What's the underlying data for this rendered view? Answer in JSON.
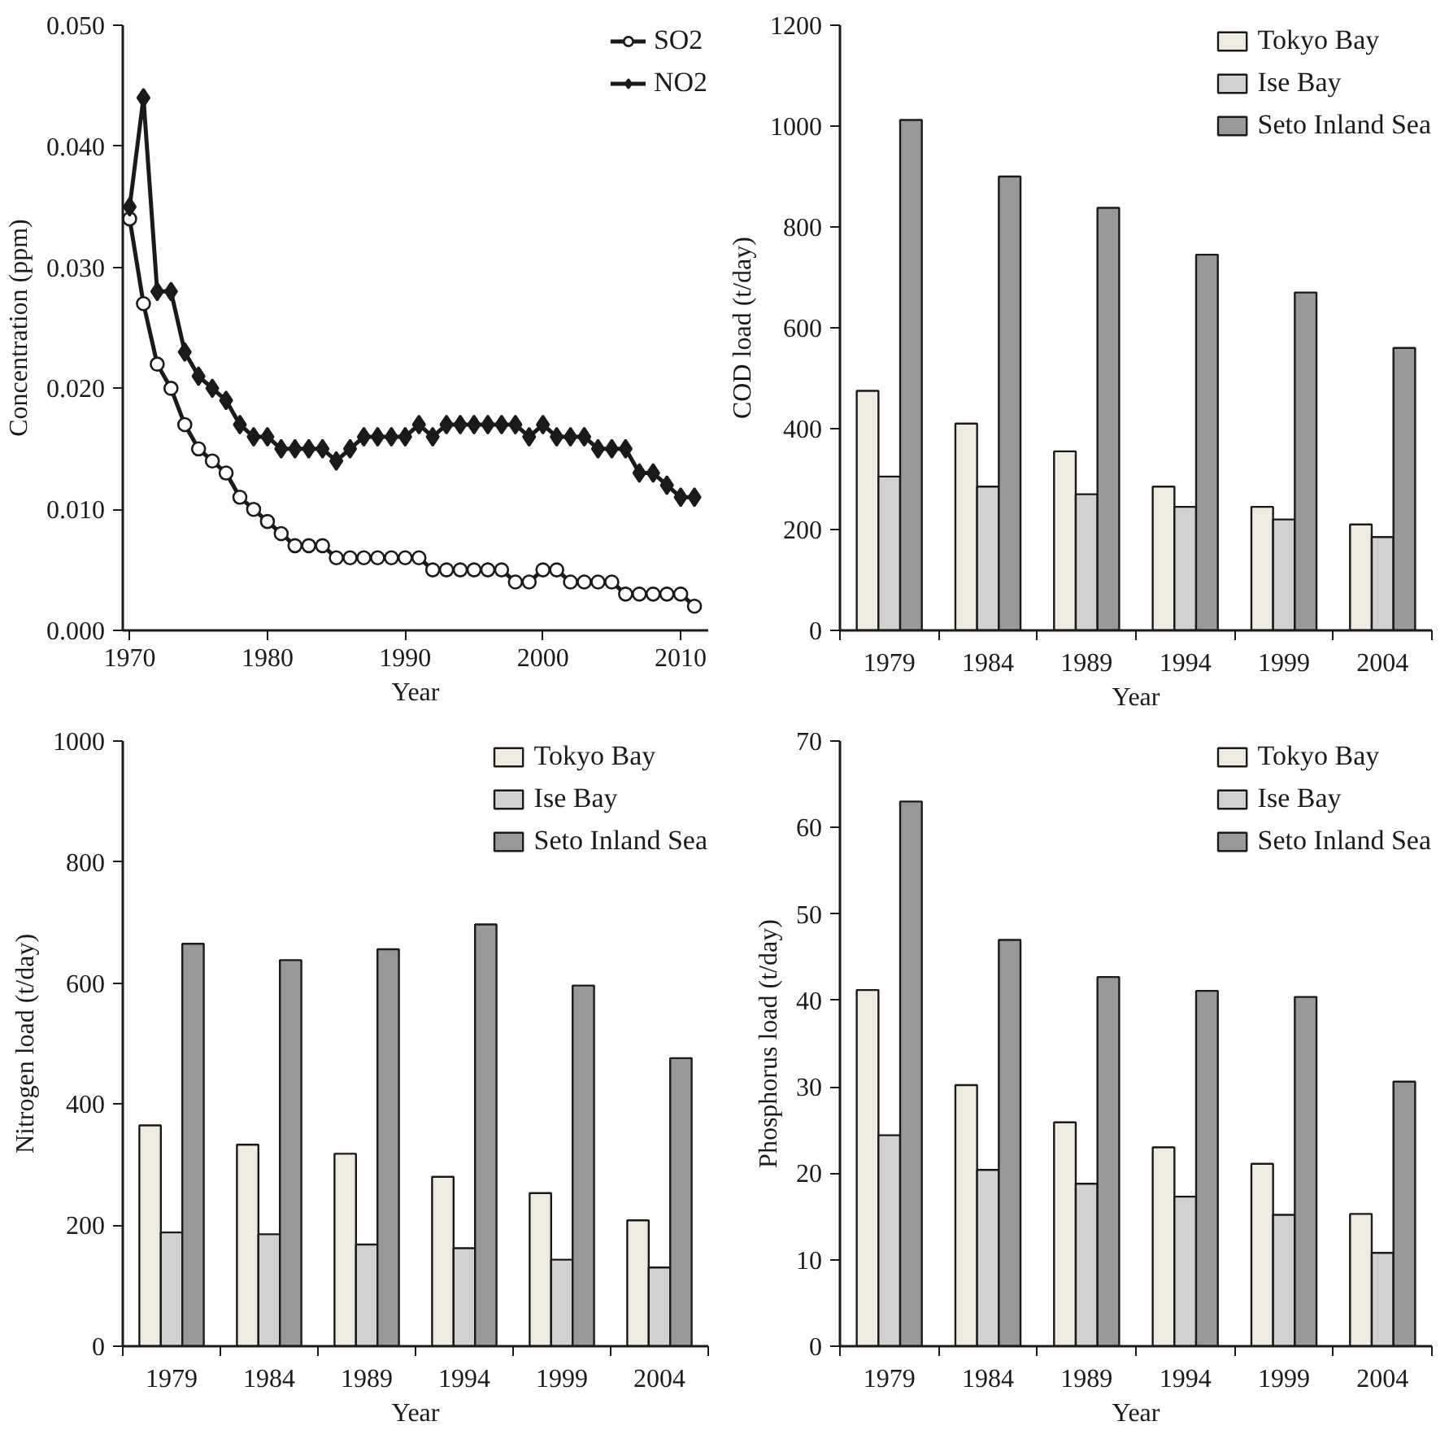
{
  "chart_data": [
    {
      "type": "line",
      "xlabel": "Year",
      "ylabel": "Concentration (ppm)",
      "x": [
        1970,
        1971,
        1972,
        1973,
        1974,
        1975,
        1976,
        1977,
        1978,
        1979,
        1980,
        1981,
        1982,
        1983,
        1984,
        1985,
        1986,
        1987,
        1988,
        1989,
        1990,
        1991,
        1992,
        1993,
        1994,
        1995,
        1996,
        1997,
        1998,
        1999,
        2000,
        2001,
        2002,
        2003,
        2004,
        2005,
        2006,
        2007,
        2008,
        2009,
        2010,
        2011
      ],
      "xlim": [
        1969.5,
        2012
      ],
      "xticks": [
        1970,
        1980,
        1990,
        2000,
        2010
      ],
      "ylim": [
        0,
        0.05
      ],
      "yticks": [
        {
          "value": 0,
          "label": "0.000"
        },
        {
          "value": 0.01,
          "label": "0.010"
        },
        {
          "value": 0.02,
          "label": "0.020"
        },
        {
          "value": 0.03,
          "label": "0.030"
        },
        {
          "value": 0.04,
          "label": "0.040"
        },
        {
          "value": 0.05,
          "label": "0.050"
        }
      ],
      "grid": false,
      "legend": "top right",
      "line_style": "solid",
      "series": [
        {
          "name": "SO2",
          "color": "#1a1a1a",
          "marker": "circle",
          "values": [
            0.034,
            0.027,
            0.022,
            0.02,
            0.017,
            0.015,
            0.014,
            0.013,
            0.011,
            0.01,
            0.009,
            0.008,
            0.007,
            0.007,
            0.007,
            0.006,
            0.006,
            0.006,
            0.006,
            0.006,
            0.006,
            0.006,
            0.005,
            0.005,
            0.005,
            0.005,
            0.005,
            0.005,
            0.004,
            0.004,
            0.005,
            0.005,
            0.004,
            0.004,
            0.004,
            0.004,
            0.003,
            0.003,
            0.003,
            0.003,
            0.003,
            0.002
          ]
        },
        {
          "name": "NO2",
          "color": "#1a1a1a",
          "marker": "diamond",
          "values": [
            0.035,
            0.044,
            0.028,
            0.028,
            0.023,
            0.021,
            0.02,
            0.019,
            0.017,
            0.016,
            0.016,
            0.015,
            0.015,
            0.015,
            0.015,
            0.014,
            0.015,
            0.016,
            0.016,
            0.016,
            0.016,
            0.017,
            0.016,
            0.017,
            0.017,
            0.017,
            0.017,
            0.017,
            0.017,
            0.016,
            0.017,
            0.016,
            0.016,
            0.016,
            0.015,
            0.015,
            0.015,
            0.013,
            0.013,
            0.012,
            0.011,
            0.011
          ]
        }
      ]
    },
    {
      "type": "bar",
      "xlabel": "Year",
      "ylabel": "COD load (t/day)",
      "categories": [
        "1979",
        "1984",
        "1989",
        "1994",
        "1999",
        "2004"
      ],
      "ylim": [
        0,
        1200
      ],
      "yticks": [
        0,
        200,
        400,
        600,
        800,
        1000,
        1200
      ],
      "grid": false,
      "legend": "top right",
      "series": [
        {
          "name": "Tokyo Bay",
          "color": "#eeece0",
          "values": [
            475,
            410,
            355,
            285,
            245,
            210
          ]
        },
        {
          "name": "Ise Bay",
          "color": "#d0d2d2",
          "values": [
            305,
            285,
            270,
            245,
            220,
            185
          ]
        },
        {
          "name": "Seto Inland Sea",
          "color": "#999999",
          "values": [
            1012,
            900,
            838,
            745,
            670,
            560
          ]
        }
      ]
    },
    {
      "type": "bar",
      "xlabel": "Year",
      "ylabel": "Nitrogen load (t/day)",
      "categories": [
        "1979",
        "1984",
        "1989",
        "1994",
        "1999",
        "2004"
      ],
      "ylim": [
        0,
        1000
      ],
      "yticks": [
        0,
        200,
        400,
        600,
        800,
        1000
      ],
      "grid": false,
      "legend": "top right",
      "series": [
        {
          "name": "Tokyo Bay",
          "color": "#eeece0",
          "values": [
            365,
            333,
            318,
            280,
            253,
            208
          ]
        },
        {
          "name": "Ise Bay",
          "color": "#d0d2d2",
          "values": [
            188,
            185,
            168,
            162,
            143,
            130
          ]
        },
        {
          "name": "Seto Inland Sea",
          "color": "#999999",
          "values": [
            665,
            638,
            656,
            697,
            596,
            476
          ]
        }
      ]
    },
    {
      "type": "bar",
      "xlabel": "Year",
      "ylabel": "Phosphorus load (t/day)",
      "categories": [
        "1979",
        "1984",
        "1989",
        "1994",
        "1999",
        "2004"
      ],
      "ylim": [
        0,
        70
      ],
      "yticks": [
        0,
        10,
        20,
        30,
        40,
        50,
        60,
        70
      ],
      "grid": false,
      "legend": "top right",
      "series": [
        {
          "name": "Tokyo Bay",
          "color": "#eeece0",
          "values": [
            41.2,
            30.2,
            25.9,
            23,
            21.1,
            15.3
          ]
        },
        {
          "name": "Ise Bay",
          "color": "#d0d2d2",
          "values": [
            24.4,
            20.4,
            18.8,
            17.3,
            15.2,
            10.8
          ]
        },
        {
          "name": "Seto Inland Sea",
          "color": "#999999",
          "values": [
            63,
            47,
            42.7,
            41.1,
            40.4,
            30.6
          ]
        }
      ]
    }
  ]
}
